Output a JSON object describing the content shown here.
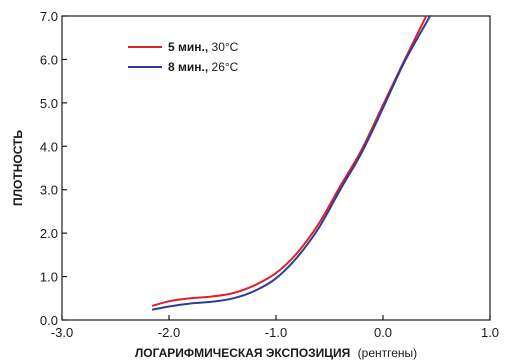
{
  "chart_data": {
    "type": "line",
    "xlabel": "ЛОГАРИФМИЧЕСКАЯ ЭКСПОЗИЦИЯ",
    "xlabel_unit": "(рентгены)",
    "ylabel": "ПЛОТНОСТЬ",
    "xlim": [
      -3.0,
      1.0
    ],
    "ylim": [
      0.0,
      7.0
    ],
    "x_ticks": [
      "-3.0",
      "-2.0",
      "-1.0",
      "0.0",
      "1.0"
    ],
    "y_ticks": [
      "0.0",
      "1.0",
      "2.0",
      "3.0",
      "4.0",
      "5.0",
      "6.0",
      "7.0"
    ],
    "grid": false,
    "legend_position": "top-left",
    "series": [
      {
        "legend_bold": "5 мин.,",
        "legend_rest": " 30°C",
        "color": "#e0202a",
        "x": [
          -2.15,
          -2.0,
          -1.8,
          -1.6,
          -1.4,
          -1.2,
          -1.0,
          -0.8,
          -0.6,
          -0.4,
          -0.2,
          0.0,
          0.2,
          0.4
        ],
        "y": [
          0.33,
          0.43,
          0.5,
          0.54,
          0.62,
          0.8,
          1.08,
          1.55,
          2.22,
          3.08,
          3.92,
          4.95,
          5.98,
          6.98
        ]
      },
      {
        "legend_bold": "8 мин.,",
        "legend_rest": " 26°C",
        "color": "#2a3e9a",
        "x": [
          -2.15,
          -2.0,
          -1.8,
          -1.6,
          -1.4,
          -1.2,
          -1.0,
          -0.8,
          -0.6,
          -0.4,
          -0.2,
          0.0,
          0.2,
          0.44
        ],
        "y": [
          0.24,
          0.31,
          0.38,
          0.42,
          0.5,
          0.67,
          0.96,
          1.45,
          2.12,
          3.0,
          3.85,
          4.88,
          5.94,
          7.0
        ]
      }
    ]
  }
}
